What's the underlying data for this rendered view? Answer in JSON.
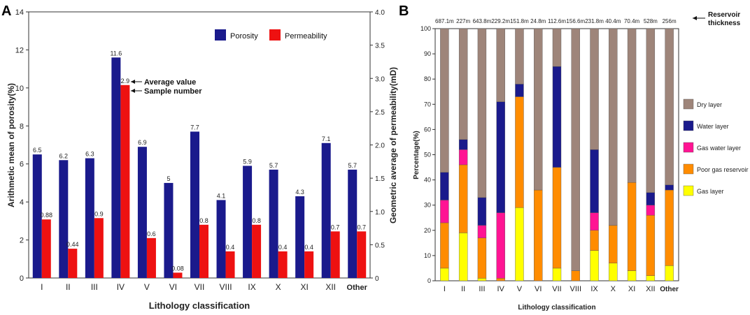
{
  "chart_data": [
    {
      "panel_label": "A",
      "type": "bar",
      "xlabel": "Lithology classification",
      "ylabel_left": "Arithmetic mean of porosity(%)",
      "ylabel_right": "Geometric average of permeability(mD)",
      "ylim_left": [
        0,
        14
      ],
      "ylim_right": [
        0,
        4.0
      ],
      "yticks_left": [
        "0",
        "2",
        "4",
        "6",
        "8",
        "10",
        "12",
        "14"
      ],
      "yticks_right": [
        "0",
        "0.5",
        "1.0",
        "1.5",
        "2.0",
        "2.5",
        "3.0",
        "3.5",
        "4.0"
      ],
      "categories": [
        "I",
        "II",
        "III",
        "IV",
        "V",
        "VI",
        "VII",
        "VIII",
        "IX",
        "X",
        "XI",
        "XII",
        "Other"
      ],
      "legend": [
        "Porosity",
        "Permeability"
      ],
      "series": [
        {
          "name": "Porosity",
          "axis": "left",
          "color": "#1a1a8c",
          "values": [
            6.5,
            6.2,
            6.3,
            11.6,
            6.9,
            5.0,
            7.7,
            4.1,
            5.9,
            5.7,
            4.3,
            7.1,
            5.7
          ],
          "labels": [
            "6.5",
            "6.2",
            "6.3",
            "11.6",
            "6.9",
            "5",
            "7.7",
            "4.1",
            "5.9",
            "5.7",
            "4.3",
            "7.1",
            "5.7"
          ]
        },
        {
          "name": "Permeability",
          "axis": "right",
          "color": "#ee1111",
          "values": [
            0.88,
            0.44,
            0.9,
            2.9,
            0.6,
            0.08,
            0.8,
            0.4,
            0.8,
            0.4,
            0.4,
            0.7,
            0.7
          ],
          "labels": [
            "0.88",
            "0.44",
            "0.9",
            "2.9",
            "0.6",
            "0.08",
            "0.8",
            "0.4",
            "0.8",
            "0.4",
            "0.4",
            "0.7",
            "0.7"
          ]
        }
      ],
      "annotations": [
        "Average value",
        "Sample number"
      ]
    },
    {
      "panel_label": "B",
      "type": "bar",
      "stacked": true,
      "xlabel": "Lithology classification",
      "ylabel": "Percentage(%)",
      "ylim": [
        0,
        100
      ],
      "yticks": [
        "0",
        "10",
        "20",
        "30",
        "40",
        "50",
        "60",
        "70",
        "80",
        "90",
        "100"
      ],
      "categories": [
        "I",
        "II",
        "III",
        "IV",
        "V",
        "VI",
        "VII",
        "VIII",
        "IX",
        "X",
        "XI",
        "XII",
        "Other"
      ],
      "thickness_labels": [
        "687.1m",
        "227m",
        "643.8m",
        "229.2m",
        "151.8m",
        "24.8m",
        "112.6m",
        "156.6m",
        "231.8m",
        "40.4m",
        "70.4m",
        "528m",
        "256m"
      ],
      "thickness_title": [
        "Reservoir",
        "thickness"
      ],
      "series": [
        {
          "name": "Gas layer",
          "color": "#ffff00",
          "values": [
            5,
            19,
            1,
            0,
            29,
            0,
            5,
            0,
            12,
            7,
            4,
            2,
            6
          ]
        },
        {
          "name": "Poor gas reservoir",
          "color": "#ff8c00",
          "values": [
            18,
            27,
            16,
            1,
            44,
            36,
            40,
            4,
            8,
            15,
            35,
            24,
            30
          ]
        },
        {
          "name": "Gas water layer",
          "color": "#ff1493",
          "values": [
            9,
            6,
            5,
            26,
            0,
            0,
            0,
            0,
            7,
            0,
            0,
            4,
            0
          ]
        },
        {
          "name": "Water layer",
          "color": "#1a1a8c",
          "values": [
            11,
            4,
            11,
            44,
            5,
            0,
            40,
            0,
            25,
            0,
            0,
            5,
            2
          ]
        },
        {
          "name": "Dry layer",
          "color": "#9e857a",
          "values": [
            57,
            44,
            67,
            29,
            22,
            64,
            15,
            96,
            48,
            78,
            61,
            65,
            62
          ]
        }
      ],
      "legend_order": [
        "Dry layer",
        "Water layer",
        "Gas water layer",
        "Poor gas reservoir",
        "Gas layer"
      ]
    }
  ]
}
